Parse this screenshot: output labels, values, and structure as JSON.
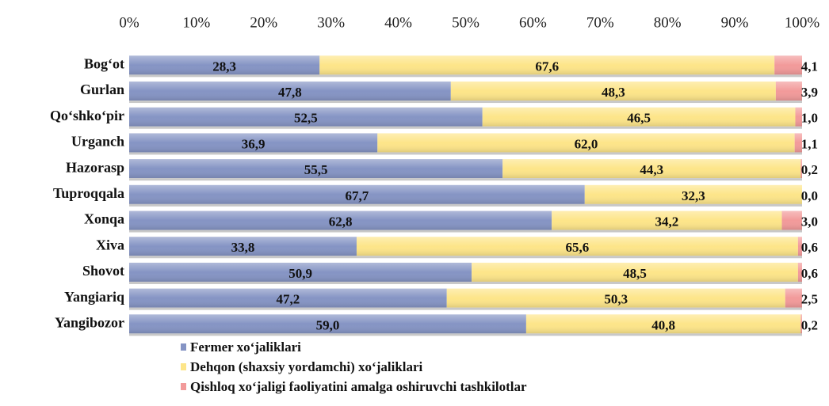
{
  "chart_data": {
    "type": "stacked_barh",
    "categories": [
      "Bog‘ot",
      "Gurlan",
      "Qo‘shko‘pir",
      "Urganch",
      "Hazorasp",
      "Tuproqqala",
      "Xonqa",
      "Xiva",
      "Shovot",
      "Yangiariq",
      "Yangibozor"
    ],
    "series": [
      {
        "name": "Fermer xo‘jaliklari",
        "color": "#8594c4",
        "values": [
          28.3,
          47.8,
          52.5,
          36.9,
          55.5,
          67.7,
          62.8,
          33.8,
          50.9,
          47.2,
          59.0
        ],
        "value_labels": [
          "28,3",
          "47,8",
          "52,5",
          "36,9",
          "55,5",
          "67,7",
          "62,8",
          "33,8",
          "50,9",
          "47,2",
          "59,0"
        ]
      },
      {
        "name": "Dehqon (shaxsiy yordamchi) xo‘jaliklari",
        "color": "#fde589",
        "values": [
          67.6,
          48.3,
          46.5,
          62.0,
          44.3,
          32.3,
          34.2,
          65.6,
          48.5,
          50.3,
          40.8
        ],
        "value_labels": [
          "67,6",
          "48,3",
          "46,5",
          "62,0",
          "44,3",
          "32,3",
          "34,2",
          "65,6",
          "48,5",
          "50,3",
          "40,8"
        ]
      },
      {
        "name": "Qishloq xo‘jaligi faoliyatini amalga oshiruvchi tashkilotlar",
        "color": "#f29a9a",
        "values": [
          4.1,
          3.9,
          1.0,
          1.1,
          0.2,
          0.0,
          3.0,
          0.6,
          0.6,
          2.5,
          0.2
        ],
        "value_labels": [
          "4,1",
          "3,9",
          "1,0",
          "1,1",
          "0,2",
          "0,0",
          "3,0",
          "0,6",
          "0,6",
          "2,5",
          "0,2"
        ]
      }
    ],
    "xlim": [
      0,
      100
    ],
    "xticks": [
      {
        "value": 0,
        "label": "0%"
      },
      {
        "value": 10,
        "label": "10%"
      },
      {
        "value": 20,
        "label": "20%"
      },
      {
        "value": 30,
        "label": "30%"
      },
      {
        "value": 40,
        "label": "40%"
      },
      {
        "value": 50,
        "label": "50%"
      },
      {
        "value": 60,
        "label": "60%"
      },
      {
        "value": 70,
        "label": "70%"
      },
      {
        "value": 80,
        "label": "80%"
      },
      {
        "value": 90,
        "label": "90%"
      },
      {
        "value": 100,
        "label": "100%"
      }
    ],
    "legend": "bottom-left"
  }
}
